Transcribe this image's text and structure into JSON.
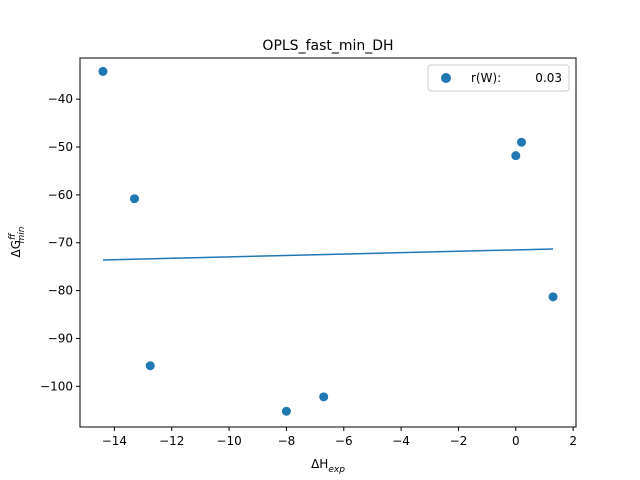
{
  "chart_data": {
    "type": "scatter",
    "title": "OPLS_fast_min_DH",
    "xlabel": {
      "base": "ΔH",
      "sub": "exp"
    },
    "ylabel": {
      "base": "ΔG",
      "sup": "ff",
      "sub": "min"
    },
    "xlim": [
      -15.2,
      2.1
    ],
    "ylim": [
      -108.5,
      -31.4
    ],
    "xticks": [
      -14,
      -12,
      -10,
      -8,
      -6,
      -4,
      -2,
      0,
      2
    ],
    "xtick_labels": [
      "−14",
      "−12",
      "−10",
      "−8",
      "−6",
      "−4",
      "−2",
      "0",
      "2"
    ],
    "yticks": [
      -100,
      -90,
      -80,
      -70,
      -60,
      -50,
      -40
    ],
    "ytick_labels": [
      "−100",
      "−90",
      "−80",
      "−70",
      "−60",
      "−50",
      "−40"
    ],
    "series": [
      {
        "name": "r(W):",
        "legend_value": "0.03",
        "color": "#1f77b4",
        "points": [
          {
            "x": -14.4,
            "y": -34.2
          },
          {
            "x": -13.3,
            "y": -60.8
          },
          {
            "x": -12.75,
            "y": -95.7
          },
          {
            "x": -8.0,
            "y": -105.2
          },
          {
            "x": -6.7,
            "y": -102.2
          },
          {
            "x": 0.0,
            "y": -51.8
          },
          {
            "x": 0.2,
            "y": -49.0
          },
          {
            "x": 1.3,
            "y": -81.3
          }
        ]
      }
    ],
    "fit_line": {
      "color": "#1f77b4",
      "points": [
        {
          "x": -14.4,
          "y": -73.6
        },
        {
          "x": 1.3,
          "y": -71.3
        }
      ]
    },
    "legend_position": "top-right",
    "grid": false
  }
}
